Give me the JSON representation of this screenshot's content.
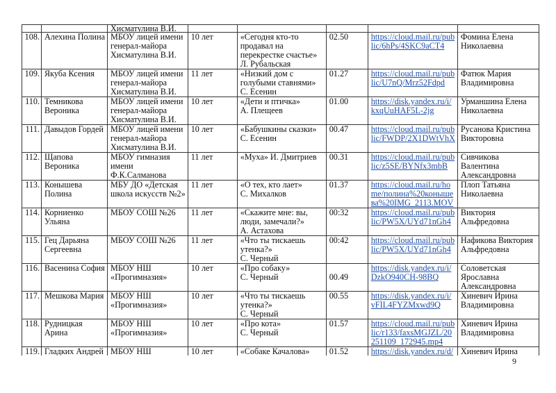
{
  "page_number": "9",
  "continued_row": {
    "num": "",
    "name": [],
    "school": [
      "Хисматулина В.И."
    ],
    "age": [],
    "work": [],
    "time": [],
    "link": [],
    "teacher": []
  },
  "rows": [
    {
      "num": "108.",
      "name": [
        "Алехина Полина"
      ],
      "school": [
        "МБОУ лицей имени",
        "генерал-майора",
        "Хисматулина В.И."
      ],
      "age": [
        "10 лет"
      ],
      "work": [
        "«Сегодня кто-то",
        "продавал на",
        "перекрестке счастье»",
        "Л. Рубальская"
      ],
      "time": [
        "02.50"
      ],
      "link": [
        "https://cloud.mail.ru/pub",
        "lic/6hPs/4SKC9aCT4"
      ],
      "teacher": [
        "Фомина Елена",
        "Николаевна"
      ]
    },
    {
      "num": "109.",
      "name": [
        "Якуба Ксения"
      ],
      "school": [
        "МБОУ лицей имени",
        "генерал-майора",
        "Хисматулина В.И."
      ],
      "age": [
        "11 лет"
      ],
      "work": [
        "«Низкий дом с",
        "голубыми ставнями»",
        "С. Есенин"
      ],
      "time": [
        "01.27"
      ],
      "link": [
        "https://cloud.mail.ru/pub",
        "lic/U7nQ/Mrz52Fdpd"
      ],
      "teacher": [
        "Фатюк Мария",
        "Владимировна"
      ]
    },
    {
      "num": "110.",
      "name": [
        "Темникова",
        "Вероника"
      ],
      "school": [
        "МБОУ лицей имени",
        "генерал-майора",
        "Хисматулина В.И."
      ],
      "age": [
        "10 лет"
      ],
      "work": [
        "«Дети и птичка»",
        "А. Плещеев"
      ],
      "time": [
        "01.00"
      ],
      "link": [
        "https://disk.yandex.ru/i/",
        "kxqUuHAF5L-2jg"
      ],
      "teacher": [
        "Урманшина Елена",
        "Николаевна"
      ]
    },
    {
      "num": "111.",
      "name": [
        "Давыдов Гордей"
      ],
      "school": [
        "МБОУ лицей имени",
        "генерал-майора",
        "Хисматулина В.И."
      ],
      "age": [
        "10 лет"
      ],
      "work": [
        "«Бабушкины сказки»",
        "С. Есенин"
      ],
      "time": [
        "00.47"
      ],
      "link": [
        "https://cloud.mail.ru/pub",
        "lic/FWDP/2X1DWtVhX"
      ],
      "teacher": [
        "Русанова Кристина",
        "Викторовна"
      ]
    },
    {
      "num": "112.",
      "name": [
        "Щапова",
        "Вероника"
      ],
      "school": [
        "МБОУ гимназия",
        "имени",
        "Ф.К.Салманова"
      ],
      "age": [
        "11 лет"
      ],
      "work": [
        "«Муха» И.  Дмитриев"
      ],
      "time": [
        "00.31"
      ],
      "link": [
        "https://cloud.mail.ru/pub",
        "lic/z5SE/BYNfx3mbB"
      ],
      "teacher": [
        "Сивчикова",
        "Валентина",
        "Александровна"
      ]
    },
    {
      "num": "113.",
      "name": [
        "Конышева",
        "Полина"
      ],
      "school": [
        "МБУ ДО «Детская",
        "школа искусств №2»"
      ],
      "age": [
        "11 лет"
      ],
      "work": [
        "«О тех, кто лает»",
        "С. Михалков"
      ],
      "time": [
        "01.37"
      ],
      "link": [
        "https://cloud.mail.ru/ho",
        "me/полина%20конышe",
        "ва%20IMG_2113.MOV"
      ],
      "teacher": [
        "Плоп Татьяна",
        "Николаевна"
      ]
    },
    {
      "num": "114.",
      "name": [
        "Корниенко",
        "Ульяна"
      ],
      "school": [
        "МБОУ СОШ №26"
      ],
      "age": [
        "11 лет"
      ],
      "work": [
        "«Скажите мне: вы,",
        "люди, замечали?»",
        "А. Астахова"
      ],
      "time": [
        "00:32"
      ],
      "link": [
        "https://cloud.mail.ru/pub",
        "lic/PW5X/UYd71nGh4"
      ],
      "teacher": [
        "Виктория",
        "Альфредовна"
      ]
    },
    {
      "num": "115.",
      "name": [
        "Гец Дарьяна",
        "Сергеевна"
      ],
      "school": [
        "МБОУ СОШ №26"
      ],
      "age": [
        "11 лет"
      ],
      "work": [
        "«Что ты тискаешь",
        "утенка?»",
        "С. Черный"
      ],
      "time": [
        "00:42"
      ],
      "link": [
        "https://cloud.mail.ru/pub",
        "lic/PW5X/UYd71nGh4"
      ],
      "teacher": [
        "Нафикова Виктория",
        "Альфредовна"
      ]
    },
    {
      "num": "116.",
      "name": [
        "Васенина София"
      ],
      "school": [
        "МБОУ НШ",
        "«Прогимназия»"
      ],
      "age": [
        "10 лет"
      ],
      "work": [
        "«Про собаку»",
        "С. Черный"
      ],
      "time": [
        "00.49"
      ],
      "time_middle": true,
      "link": [
        "https://disk.yandex.ru/i/",
        "DzkO940CH-98BQ"
      ],
      "teacher": [
        "Соловетская",
        "Ярославна",
        "Александровна"
      ]
    },
    {
      "num": "117.",
      "name": [
        "Мешкова Мария"
      ],
      "school": [
        "МБОУ НШ",
        "«Прогимназия»"
      ],
      "age": [
        "10 лет"
      ],
      "work": [
        "«Что ты тискаешь",
        "утенка?»",
        "С. Черный"
      ],
      "time": [
        "00.55"
      ],
      "link": [
        "https://disk.yandex.ru/i/",
        "vFIL4FYZMxwd9Q"
      ],
      "teacher": [
        "Хиневич Ирина",
        "Владимировна"
      ]
    },
    {
      "num": "118.",
      "name": [
        "Рудницкая",
        "Арина"
      ],
      "school": [
        "МБОУ НШ",
        "«Прогимназия»"
      ],
      "age": [
        "10 лет"
      ],
      "work": [
        "«Про кота»",
        "С. Черный"
      ],
      "time": [
        "01.57"
      ],
      "link": [
        "https://cloud.mail.ru/pub",
        "lic/r133/faxsMGJZL/20",
        "251109_172945.mp4"
      ],
      "teacher": [
        "Хиневич Ирина",
        "Владимировна"
      ]
    },
    {
      "num": "119.",
      "name": [
        "Гладких Андрей"
      ],
      "school": [
        "МБОУ НШ"
      ],
      "age": [
        "10 лет"
      ],
      "work": [
        "«Собаке Качалова»"
      ],
      "time": [
        "01.52"
      ],
      "link": [
        "https://disk.yandex.ru/d/"
      ],
      "teacher": [
        "Хиневич Ирина"
      ]
    }
  ]
}
